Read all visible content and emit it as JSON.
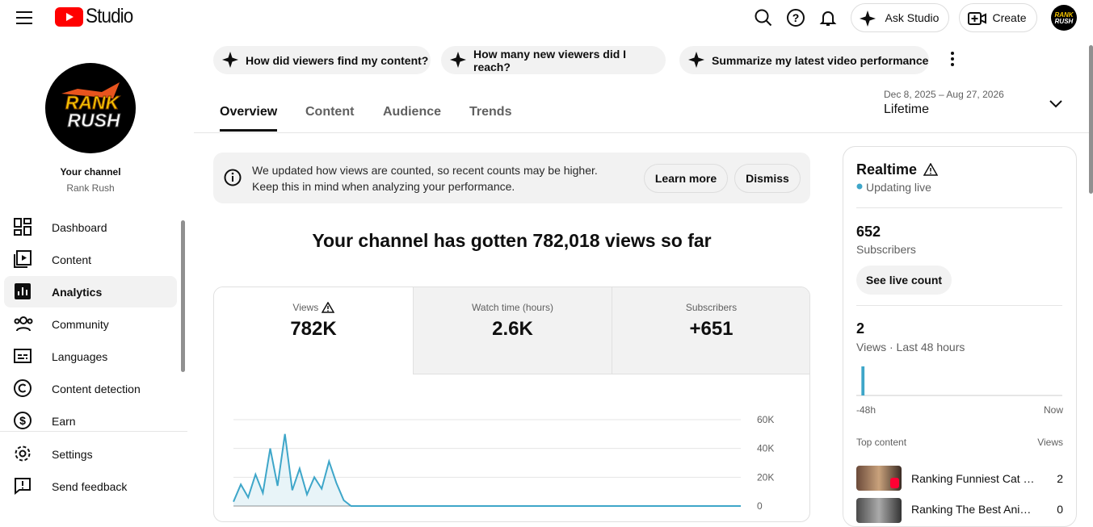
{
  "header": {
    "logo": "Studio",
    "ask": "Ask Studio",
    "create": "Create"
  },
  "sidebar": {
    "channel_label": "Your channel",
    "channel_name": "Rank Rush",
    "nav": [
      "Dashboard",
      "Content",
      "Analytics",
      "Community",
      "Languages",
      "Content detection",
      "Earn"
    ],
    "active": "Analytics",
    "footer": [
      "Settings",
      "Send feedback"
    ]
  },
  "suggestions": [
    "How did viewers find my content?",
    "How many new viewers did I reach?",
    "Summarize my latest video performance"
  ],
  "tabs": [
    "Overview",
    "Content",
    "Audience",
    "Trends"
  ],
  "active_tab": "Overview",
  "date_range": {
    "range": "Dec 8, 2025 – Aug 27, 2026",
    "period": "Lifetime"
  },
  "banner": {
    "lines": [
      "We updated how views are counted, so recent counts may be higher.",
      "Keep this in mind when analyzing your performance."
    ],
    "learn_more": "Learn more",
    "dismiss": "Dismiss"
  },
  "headline": "Your channel has gotten 782,018 views so far",
  "metrics": [
    {
      "label": "Views",
      "value": "782K"
    },
    {
      "label": "Watch time (hours)",
      "value": "2.6K"
    },
    {
      "label": "Subscribers",
      "value": "+651"
    }
  ],
  "chart": {
    "type": "line",
    "color": "#3ea6c9",
    "values": [
      3000,
      15000,
      6000,
      22000,
      9000,
      40000,
      14000,
      50000,
      11000,
      26000,
      8000,
      20000,
      12000,
      31000,
      16000,
      4000,
      0,
      0,
      0,
      0,
      0,
      0,
      0,
      0,
      0,
      0,
      0,
      0,
      0,
      0,
      0,
      0,
      0,
      0,
      0,
      0,
      0,
      0,
      0,
      0,
      0,
      0,
      0,
      0,
      0,
      0,
      0,
      0,
      0,
      0,
      0,
      0,
      0,
      0,
      0,
      0,
      0,
      0,
      0,
      0,
      0,
      0,
      0,
      0,
      0,
      0,
      0,
      0,
      0,
      0
    ],
    "ylim": [
      0,
      60000
    ],
    "yticks": [
      0,
      {
        "value": 20000,
        "label": "20K"
      },
      {
        "value": 40000,
        "label": "40K"
      },
      {
        "value": 60000,
        "label": "60K"
      }
    ],
    "grid": true
  },
  "realtime": {
    "title": "Realtime",
    "status": "Updating live",
    "subscribers": 652,
    "subscribers_label": "Subscribers",
    "live_button": "See live count",
    "views": 2,
    "views_label": "Views · Last 48 hours",
    "bars": [
      0,
      2,
      0,
      0,
      0,
      0,
      0,
      0,
      0,
      0,
      0,
      0,
      0,
      0,
      0,
      0,
      0,
      0,
      0,
      0,
      0,
      0,
      0,
      0,
      0,
      0,
      0,
      0,
      0,
      0,
      0,
      0,
      0,
      0,
      0,
      0,
      0,
      0,
      0,
      0,
      0,
      0,
      0,
      0,
      0,
      0,
      0,
      0
    ],
    "start": "-48h",
    "end": "Now",
    "top_label": "Top content",
    "views_col": "Views",
    "top": [
      {
        "title": "Ranking Funniest Cat …",
        "views": 2
      },
      {
        "title": "Ranking The Best Ani…",
        "views": 0
      }
    ]
  }
}
